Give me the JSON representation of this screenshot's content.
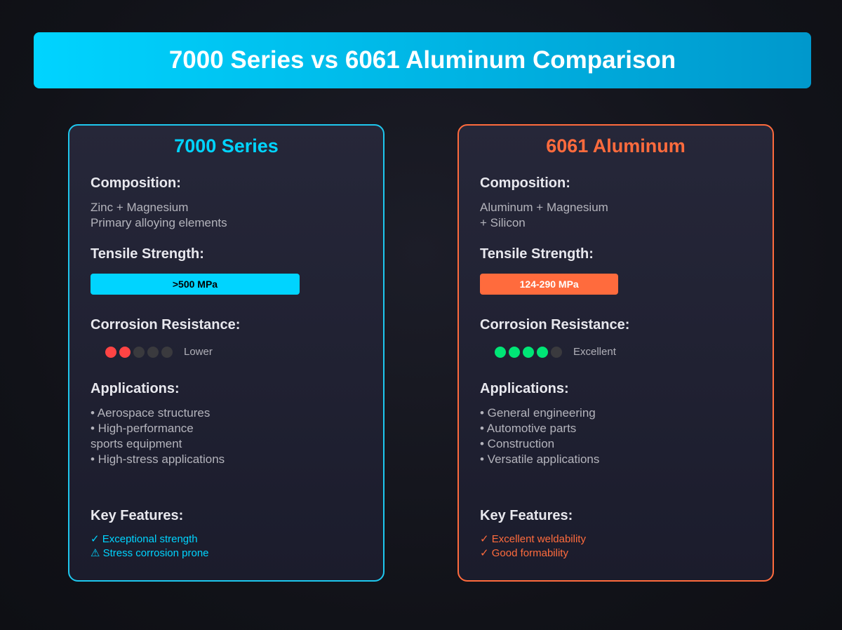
{
  "title": "7000 Series vs 6061 Aluminum Comparison",
  "labels": {
    "composition": "Composition:",
    "tensile": "Tensile Strength:",
    "corrosion": "Corrosion Resistance:",
    "applications": "Applications:",
    "features": "Key Features:"
  },
  "cards": [
    {
      "name": "7000 Series",
      "accent": "#00d4ff",
      "bar_text_color": "#000000",
      "composition": [
        "Zinc + Magnesium",
        "Primary alloying elements"
      ],
      "tensile_label": ">500 MPa",
      "tensile_fill_percent": 77,
      "corrosion_rating": 2,
      "corrosion_max": 5,
      "corrosion_color": "#ff4444",
      "corrosion_label": "Lower",
      "applications": [
        "• Aerospace structures",
        "• High-performance",
        "sports equipment",
        "• High-stress applications"
      ],
      "features": [
        {
          "icon": "check-icon",
          "text": "✓ Exceptional strength"
        },
        {
          "icon": "warning-icon",
          "text": "⚠ Stress corrosion prone"
        }
      ]
    },
    {
      "name": "6061 Aluminum",
      "accent": "#ff6b3d",
      "bar_text_color": "#ffffff",
      "composition": [
        "Aluminum + Magnesium",
        "+ Silicon"
      ],
      "tensile_label": "124-290 MPa",
      "tensile_fill_percent": 51,
      "corrosion_rating": 4,
      "corrosion_max": 5,
      "corrosion_color": "#00e676",
      "corrosion_label": "Excellent",
      "applications": [
        "• General engineering",
        "• Automotive parts",
        "• Construction",
        "• Versatile applications"
      ],
      "features": [
        {
          "icon": "check-icon",
          "text": "✓ Excellent weldability"
        },
        {
          "icon": "check-icon",
          "text": "✓ Good formability"
        }
      ]
    }
  ]
}
